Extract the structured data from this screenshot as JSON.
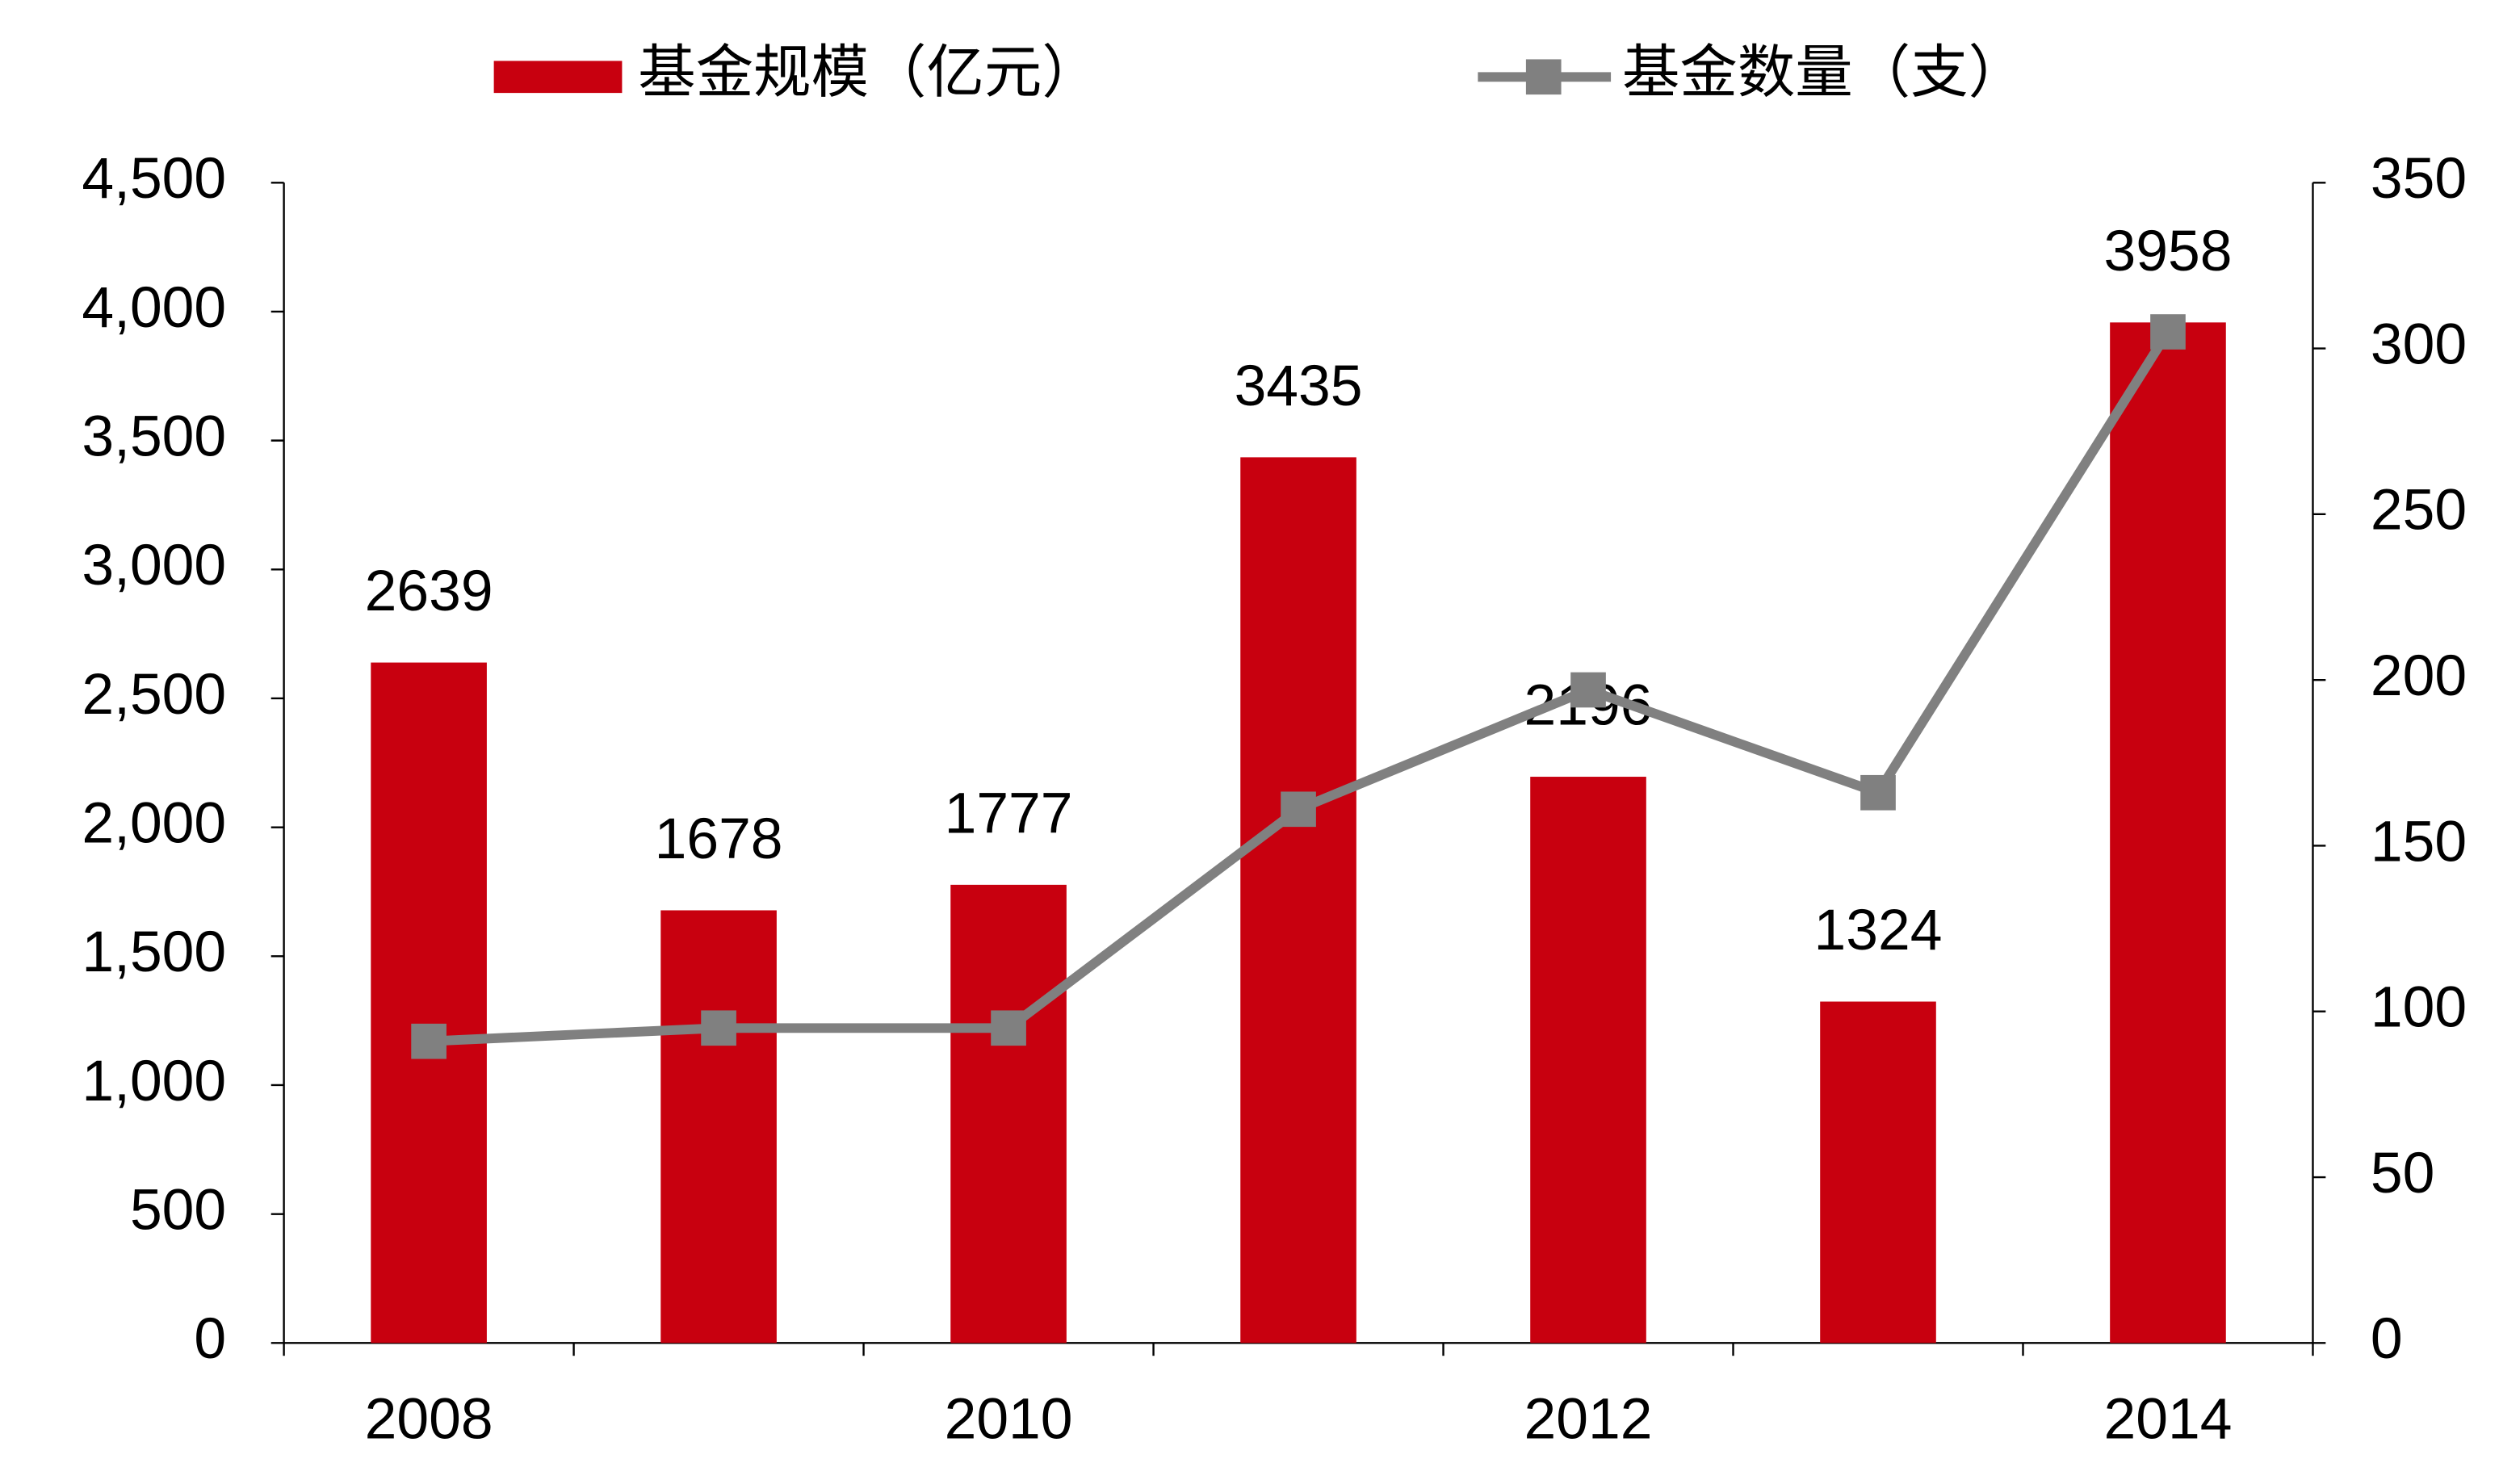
{
  "chart_data": {
    "type": "bar",
    "categories": [
      "2008",
      null,
      "2010",
      null,
      "2012",
      null,
      "2014"
    ],
    "series": [
      {
        "name": "基金规模（亿元）",
        "type": "bar",
        "color": "#c8000f",
        "values": [
          2639,
          1678,
          1777,
          3435,
          2196,
          1324,
          3958
        ]
      },
      {
        "name": "基金数量（支）",
        "type": "line",
        "axis": "y2",
        "color": "#808080",
        "values": [
          91,
          95,
          95,
          161,
          197,
          166,
          305
        ]
      }
    ],
    "ylim": [
      0,
      4500
    ],
    "yticks": [
      0,
      500,
      {
        "value": 1000,
        "label": "1,000"
      },
      {
        "value": 1500,
        "label": "1,500"
      },
      {
        "value": 2000,
        "label": "2,000"
      },
      {
        "value": 2500,
        "label": "2,500"
      },
      {
        "value": 3000,
        "label": "3,000"
      },
      {
        "value": 3500,
        "label": "3,500"
      },
      {
        "value": 4000,
        "label": "4,000"
      },
      {
        "value": 4500,
        "label": "4,500"
      }
    ],
    "y2lim": [
      0,
      350
    ],
    "y2ticks": [
      0,
      50,
      100,
      150,
      200,
      250,
      300,
      350
    ],
    "legend": "top",
    "grid": false
  }
}
